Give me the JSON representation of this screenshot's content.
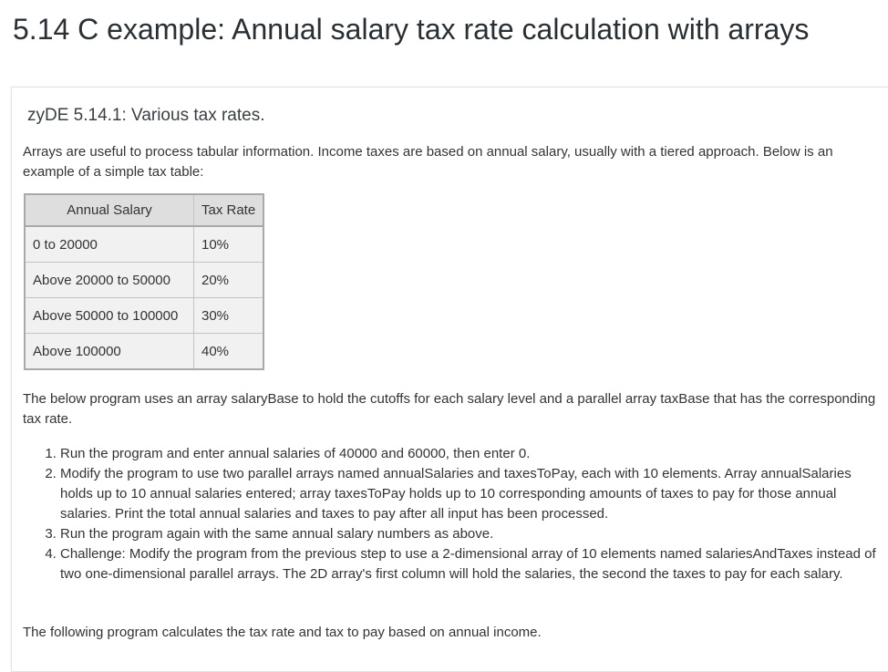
{
  "page": {
    "title": "5.14 C example: Annual salary tax rate calculation with arrays"
  },
  "zyde": {
    "title": "zyDE 5.14.1: Various tax rates.",
    "intro": "Arrays are useful to process tabular information. Income taxes are based on annual salary, usually with a tiered approach. Below is an example of a simple tax table:",
    "table": {
      "headers": [
        "Annual Salary",
        "Tax Rate"
      ],
      "rows": [
        [
          "0 to 20000",
          "10%"
        ],
        [
          "Above 20000 to 50000",
          "20%"
        ],
        [
          "Above 50000 to 100000",
          "30%"
        ],
        [
          "Above 100000",
          "40%"
        ]
      ]
    },
    "below_text": "The below program uses an array salaryBase to hold the cutoffs for each salary level and a parallel array taxBase that has the corresponding tax rate.",
    "steps": [
      "Run the program and enter annual salaries of 40000 and 60000, then enter 0.",
      "Modify the program to use two parallel arrays named annualSalaries and taxesToPay, each with 10 elements. Array annualSalaries holds up to 10 annual salaries entered; array taxesToPay holds up to 10 corresponding amounts of taxes to pay for those annual salaries. Print the total annual salaries and taxes to pay after all input has been processed.",
      "Run the program again with the same annual salary numbers as above.",
      "Challenge: Modify the program from the previous step to use a 2-dimensional array of 10 elements named salariesAndTaxes instead of two one-dimensional parallel arrays. The 2D array's first column will hold the salaries, the second the taxes to pay for each salary."
    ],
    "following_text": "The following program calculates the tax rate and tax to pay based on annual income."
  }
}
